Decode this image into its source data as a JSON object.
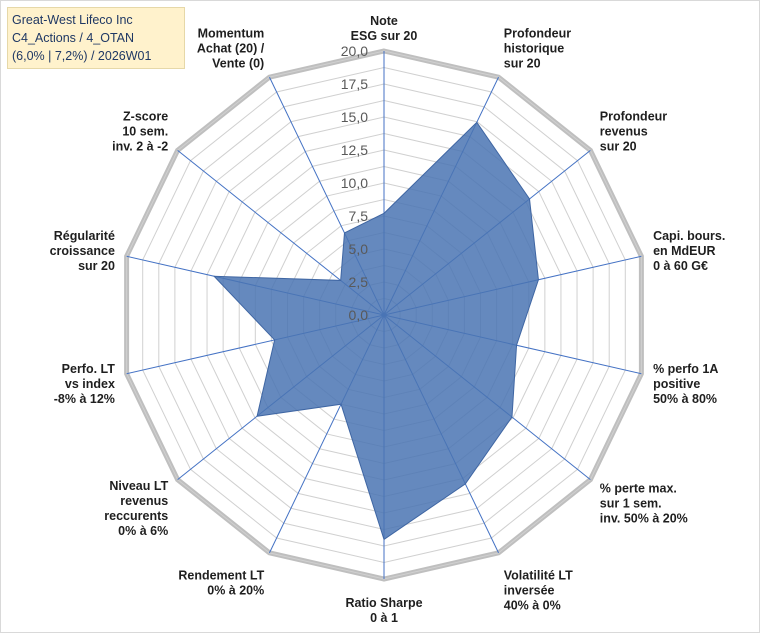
{
  "chart_data": {
    "type": "radar",
    "title_lines": [
      "Great-West Lifeco Inc",
      "C4_Actions / 4_OTAN",
      "(6,0% | 7,2%) / 2026W01"
    ],
    "ylim": [
      0,
      20
    ],
    "tick_labels": [
      "0,0",
      "2,5",
      "5,0",
      "7,5",
      "10,0",
      "12,5",
      "15,0",
      "17,5",
      "20,0"
    ],
    "axes": [
      {
        "label_lines": [
          "Note",
          "ESG sur 20"
        ],
        "value": 7.7
      },
      {
        "label_lines": [
          "Profondeur",
          "historique",
          "sur 20"
        ],
        "value": 16.2
      },
      {
        "label_lines": [
          "Profondeur",
          "revenus",
          "sur 20"
        ],
        "value": 14.1
      },
      {
        "label_lines": [
          "Capi. bours.",
          "en MdEUR",
          "0 à 60 G€"
        ],
        "value": 12.0
      },
      {
        "label_lines": [
          "% perfo 1A",
          "positive",
          "50% à 80%"
        ],
        "value": 10.3
      },
      {
        "label_lines": [
          "% perte max.",
          "sur 1 sem.",
          "inv. 50% à 20%"
        ],
        "value": 12.4
      },
      {
        "label_lines": [
          "Volatilité LT",
          "inversée",
          "40% à 0%"
        ],
        "value": 14.2
      },
      {
        "label_lines": [
          "Ratio Sharpe",
          "0 à 1"
        ],
        "value": 17.0
      },
      {
        "label_lines": [
          "Rendement LT",
          "0% à 20%"
        ],
        "value": 7.5
      },
      {
        "label_lines": [
          "Niveau LT",
          "revenus",
          "reccurents",
          "0% à 6%"
        ],
        "value": 12.3
      },
      {
        "label_lines": [
          "Perfo. LT",
          "vs index",
          "-8% à 12%"
        ],
        "value": 8.5
      },
      {
        "label_lines": [
          "Régularité",
          "croissance",
          "sur 20"
        ],
        "value": 13.2
      },
      {
        "label_lines": [
          "Z-score",
          "10 sem.",
          "inv. 2 à -2"
        ],
        "value": 4.2
      },
      {
        "label_lines": [
          "Momentum",
          "Achat (20) /",
          "Vente (0)"
        ],
        "value": 6.9
      }
    ],
    "colors": {
      "fill": "#4a74b3",
      "stroke": "#3f66a3",
      "grid": "#d0d0d0",
      "spoke": "#4472c4",
      "outer_ring": "#bfbfbf",
      "label": "#1f1f1f",
      "tick": "#595959"
    }
  }
}
